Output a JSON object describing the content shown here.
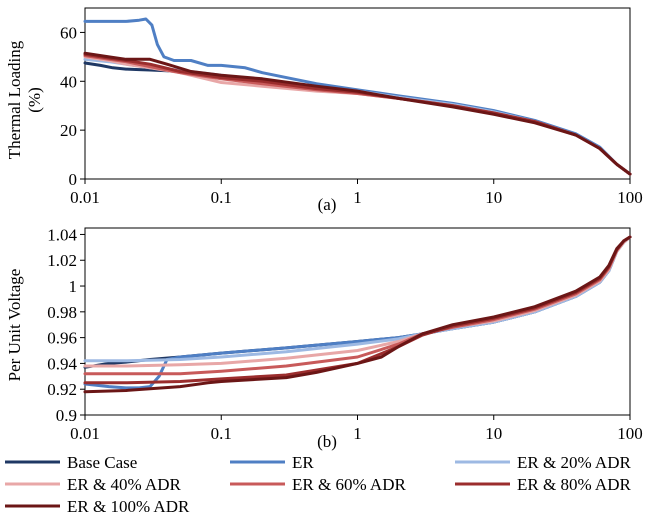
{
  "chart_data": [
    {
      "panel_label": "(a)",
      "type": "line",
      "ylabel": "Thermal Loading\n(%)",
      "xscale": "log",
      "xlim": [
        0.01,
        100
      ],
      "ylim": [
        0,
        70
      ],
      "xticks": [
        "0.01",
        "0.1",
        "1",
        "10",
        "100"
      ],
      "yticks": [
        "0",
        "20",
        "40",
        "60"
      ],
      "series": [
        {
          "name": "Base Case",
          "x": [
            0.01,
            0.013,
            0.016,
            0.02,
            0.025,
            0.03,
            0.04,
            0.06,
            0.1,
            0.2,
            0.5,
            1,
            2,
            5,
            10,
            20,
            40,
            60,
            80,
            100
          ],
          "y": [
            47.5,
            46.5,
            45.5,
            45,
            44.8,
            44.6,
            44.3,
            43.5,
            42,
            40.5,
            38,
            36,
            33.5,
            30.5,
            27.5,
            23.5,
            18,
            12.5,
            6,
            2
          ]
        },
        {
          "name": "ER",
          "x": [
            0.01,
            0.015,
            0.02,
            0.025,
            0.028,
            0.031,
            0.034,
            0.038,
            0.045,
            0.06,
            0.08,
            0.1,
            0.15,
            0.2,
            0.5,
            1,
            2,
            5,
            10,
            20,
            40,
            60,
            80,
            100
          ],
          "y": [
            64.5,
            64.5,
            64.5,
            65,
            65.5,
            63,
            55,
            50,
            48.5,
            48.5,
            46.5,
            46.5,
            45.5,
            43.5,
            39,
            36.5,
            34,
            31,
            28,
            24,
            18.5,
            13,
            6,
            2
          ]
        },
        {
          "name": "ER & 20% ADR",
          "x": [
            0.01,
            0.015,
            0.02,
            0.03,
            0.05,
            0.1,
            0.2,
            0.5,
            1,
            2,
            5,
            10,
            20,
            40,
            60,
            80,
            100
          ],
          "y": [
            49,
            48,
            47,
            45.5,
            44.5,
            42.5,
            40.5,
            37.5,
            36,
            33.5,
            30.5,
            27.5,
            23.5,
            18,
            12.5,
            6,
            2
          ]
        },
        {
          "name": "ER & 40% ADR",
          "x": [
            0.01,
            0.015,
            0.02,
            0.03,
            0.05,
            0.1,
            0.2,
            0.5,
            1,
            2,
            5,
            10,
            20,
            40,
            60,
            80,
            100
          ],
          "y": [
            50,
            48.5,
            47,
            45.5,
            43.5,
            39.5,
            38,
            36,
            35,
            33,
            30,
            27,
            23.5,
            18,
            12.5,
            6,
            2
          ]
        },
        {
          "name": "ER & 60% ADR",
          "x": [
            0.01,
            0.015,
            0.02,
            0.03,
            0.05,
            0.1,
            0.2,
            0.5,
            1,
            2,
            5,
            10,
            20,
            40,
            60,
            80,
            100
          ],
          "y": [
            50.5,
            49,
            48,
            46,
            43.5,
            41,
            39,
            36.5,
            35,
            33,
            30,
            27,
            23.5,
            18,
            12.5,
            6,
            2
          ]
        },
        {
          "name": "ER & 80% ADR",
          "x": [
            0.01,
            0.015,
            0.02,
            0.03,
            0.05,
            0.1,
            0.2,
            0.5,
            1,
            2,
            5,
            10,
            20,
            40,
            60,
            80,
            100
          ],
          "y": [
            51,
            49.5,
            48.5,
            47,
            44,
            41.5,
            40,
            37,
            35.5,
            33,
            30,
            27,
            23.5,
            18,
            12.5,
            6,
            2
          ]
        },
        {
          "name": "ER & 100% ADR",
          "x": [
            0.01,
            0.015,
            0.02,
            0.03,
            0.04,
            0.06,
            0.1,
            0.2,
            0.5,
            1,
            2,
            5,
            10,
            20,
            40,
            60,
            80,
            100
          ],
          "y": [
            51.5,
            50,
            49,
            49,
            47,
            44,
            42.5,
            41,
            38,
            36,
            33,
            29.5,
            26.5,
            23,
            18,
            12.5,
            6,
            2
          ]
        }
      ]
    },
    {
      "panel_label": "(b)",
      "type": "line",
      "ylabel": "Per Unit Voltage",
      "xscale": "log",
      "xlim": [
        0.01,
        100
      ],
      "ylim": [
        0.9,
        1.045
      ],
      "xticks": [
        "0.01",
        "0.1",
        "1",
        "10",
        "100"
      ],
      "yticks": [
        "0.9",
        "0.92",
        "0.94",
        "0.96",
        "0.98",
        "1",
        "1.02",
        "1.04"
      ],
      "series": [
        {
          "name": "Base Case",
          "x": [
            0.01,
            0.015,
            0.02,
            0.03,
            0.05,
            0.1,
            0.3,
            1,
            2,
            3,
            5,
            10,
            20,
            40,
            60,
            70,
            80,
            90,
            100
          ],
          "y": [
            0.937,
            0.94,
            0.941,
            0.943,
            0.945,
            0.948,
            0.952,
            0.957,
            0.96,
            0.963,
            0.967,
            0.972,
            0.98,
            0.992,
            1.003,
            1.012,
            1.027,
            1.034,
            1.038
          ]
        },
        {
          "name": "ER",
          "x": [
            0.01,
            0.015,
            0.02,
            0.025,
            0.03,
            0.035,
            0.04,
            0.05,
            0.1,
            0.3,
            1,
            2,
            3,
            5,
            10,
            20,
            40,
            60,
            70,
            80,
            90,
            100
          ],
          "y": [
            0.924,
            0.922,
            0.921,
            0.921,
            0.922,
            0.93,
            0.943,
            0.945,
            0.948,
            0.952,
            0.957,
            0.96,
            0.963,
            0.967,
            0.972,
            0.98,
            0.992,
            1.003,
            1.012,
            1.027,
            1.034,
            1.038
          ]
        },
        {
          "name": "ER & 20% ADR",
          "x": [
            0.01,
            0.02,
            0.05,
            0.1,
            0.3,
            1,
            2,
            3,
            5,
            10,
            20,
            40,
            60,
            70,
            80,
            90,
            100
          ],
          "y": [
            0.942,
            0.942,
            0.943,
            0.945,
            0.949,
            0.955,
            0.959,
            0.963,
            0.967,
            0.972,
            0.98,
            0.992,
            1.003,
            1.012,
            1.027,
            1.034,
            1.038
          ]
        },
        {
          "name": "ER & 40% ADR",
          "x": [
            0.01,
            0.02,
            0.05,
            0.1,
            0.3,
            1,
            2,
            3,
            5,
            10,
            20,
            40,
            60,
            70,
            80,
            90,
            100
          ],
          "y": [
            0.938,
            0.938,
            0.939,
            0.94,
            0.944,
            0.95,
            0.957,
            0.963,
            0.968,
            0.973,
            0.981,
            0.993,
            1.004,
            1.013,
            1.027,
            1.034,
            1.038
          ]
        },
        {
          "name": "ER & 60% ADR",
          "x": [
            0.01,
            0.02,
            0.05,
            0.1,
            0.3,
            1,
            2,
            3,
            5,
            10,
            20,
            40,
            60,
            70,
            80,
            90,
            100
          ],
          "y": [
            0.932,
            0.932,
            0.932,
            0.934,
            0.938,
            0.945,
            0.955,
            0.963,
            0.968,
            0.974,
            0.982,
            0.994,
            1.005,
            1.014,
            1.028,
            1.035,
            1.038
          ]
        },
        {
          "name": "ER & 80% ADR",
          "x": [
            0.01,
            0.02,
            0.05,
            0.1,
            0.3,
            1,
            2,
            3,
            5,
            10,
            20,
            40,
            60,
            70,
            80,
            90,
            100
          ],
          "y": [
            0.925,
            0.925,
            0.926,
            0.928,
            0.931,
            0.94,
            0.953,
            0.962,
            0.969,
            0.975,
            0.983,
            0.995,
            1.006,
            1.015,
            1.028,
            1.035,
            1.038
          ]
        },
        {
          "name": "ER & 100% ADR",
          "x": [
            0.01,
            0.02,
            0.05,
            0.08,
            0.1,
            0.3,
            0.5,
            1,
            1.5,
            2,
            3,
            5,
            10,
            20,
            40,
            60,
            70,
            80,
            90,
            100
          ],
          "y": [
            0.918,
            0.919,
            0.922,
            0.925,
            0.926,
            0.929,
            0.933,
            0.94,
            0.945,
            0.953,
            0.963,
            0.97,
            0.976,
            0.984,
            0.996,
            1.007,
            1.016,
            1.029,
            1.035,
            1.038
          ]
        }
      ]
    }
  ],
  "series_colors": [
    "#1f3864",
    "#4f7fc4",
    "#9db9e3",
    "#e8a7a7",
    "#c85a5a",
    "#9b2d2d",
    "#6b1616"
  ],
  "legend": [
    "Base Case",
    "ER",
    "ER & 20% ADR",
    "ER & 40% ADR",
    "ER & 60% ADR",
    "ER & 80% ADR",
    "ER & 100% ADR"
  ]
}
